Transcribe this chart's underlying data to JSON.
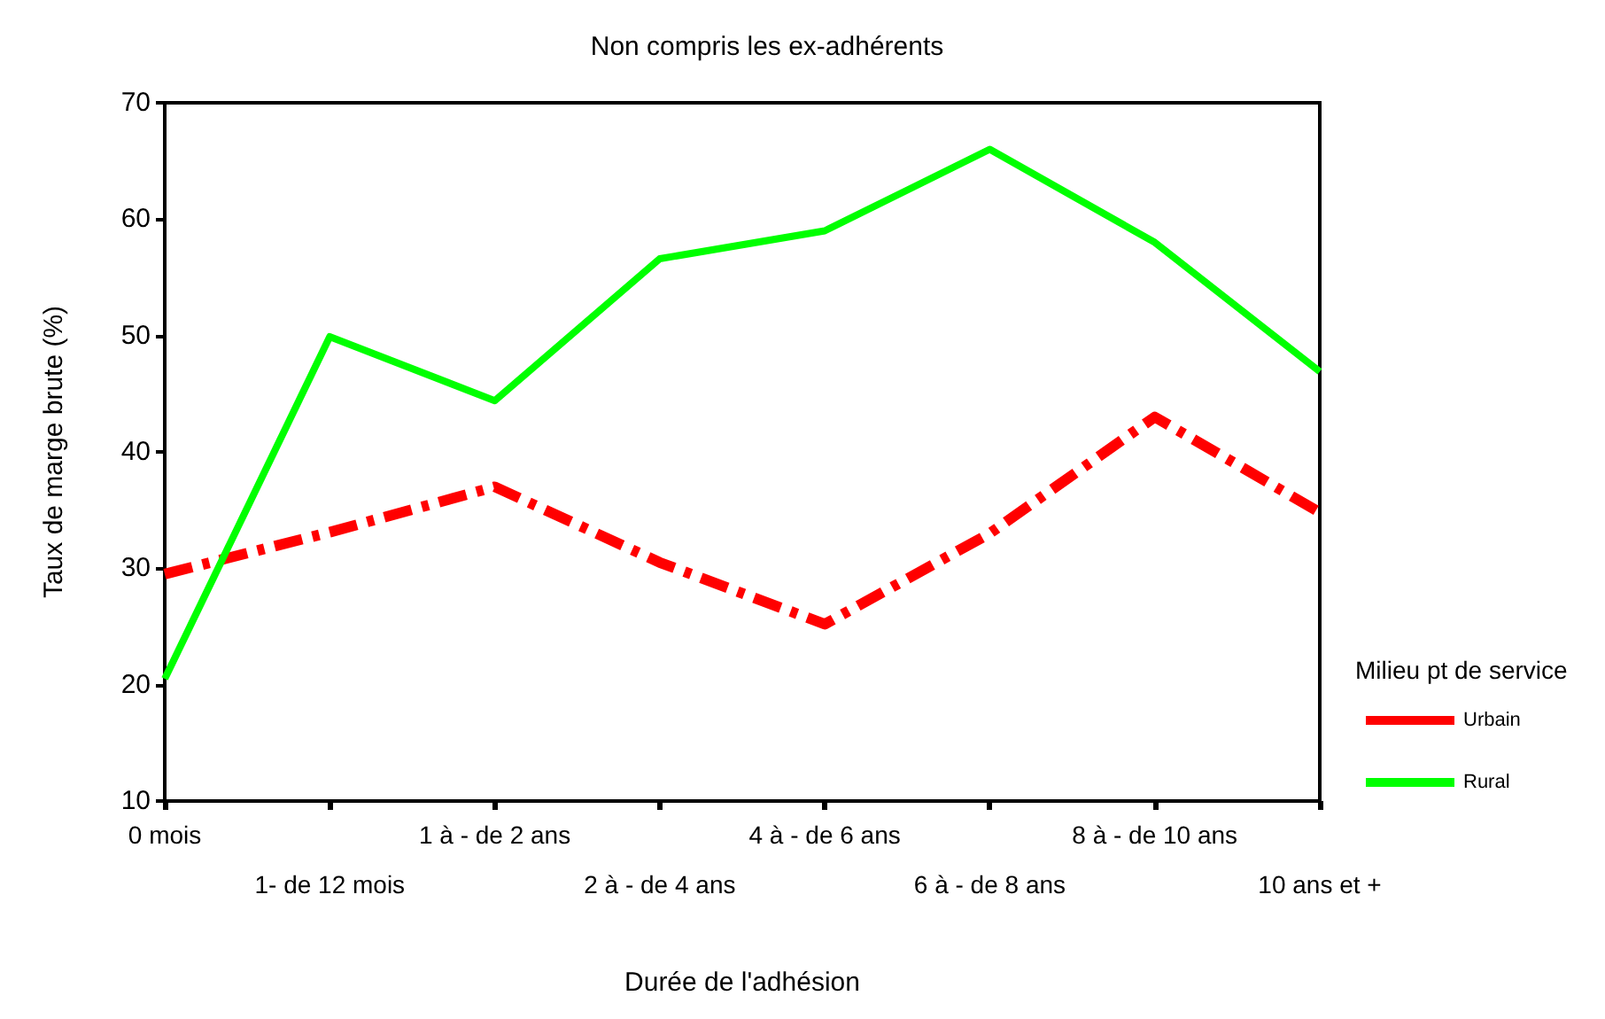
{
  "chart_data": {
    "type": "line",
    "title": "Non compris les ex-adhérents",
    "xlabel": "Durée de l'adhésion",
    "ylabel": "Taux de marge brute (%)",
    "legend_title": "Milieu pt de service",
    "categories": [
      "0 mois",
      "1- de 12 mois",
      "1 à - de 2 ans",
      "2 à - de 4 ans",
      "4 à - de 6 ans",
      "6 à - de 8 ans",
      "8 à - de 10 ans",
      "10 ans et +"
    ],
    "series": [
      {
        "name": "Urbain",
        "color": "#ff0000",
        "line_style": "dashdot",
        "values": [
          29.5,
          33.1,
          37,
          30.5,
          25.2,
          33,
          43,
          34.8
        ]
      },
      {
        "name": "Rural",
        "color": "#00ff00",
        "line_style": "solid",
        "values": [
          20.5,
          49.9,
          44.4,
          56.6,
          59,
          66,
          58,
          46.9
        ]
      }
    ],
    "ylim": [
      10,
      70
    ],
    "yticks": [
      10,
      20,
      30,
      40,
      50,
      60,
      70
    ],
    "grid": false,
    "legend": "right",
    "marker": "none"
  }
}
